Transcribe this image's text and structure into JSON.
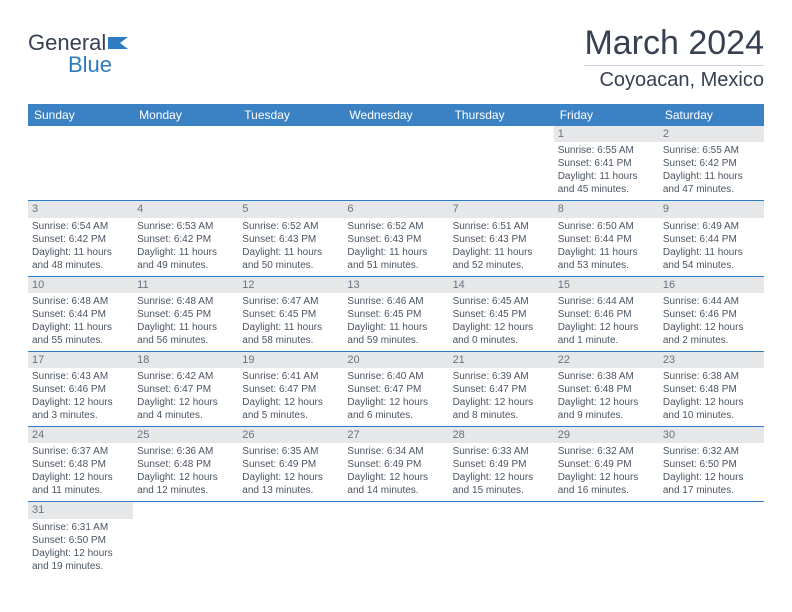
{
  "logo": {
    "general": "General",
    "blue": "Blue"
  },
  "title": "March 2024",
  "location": "Coyoacan, Mexico",
  "header_bg": "#3b82c4",
  "day_headers": [
    "Sunday",
    "Monday",
    "Tuesday",
    "Wednesday",
    "Thursday",
    "Friday",
    "Saturday"
  ],
  "weeks": [
    [
      null,
      null,
      null,
      null,
      null,
      {
        "n": "1",
        "sr": "Sunrise: 6:55 AM",
        "ss": "Sunset: 6:41 PM",
        "d1": "Daylight: 11 hours",
        "d2": "and 45 minutes."
      },
      {
        "n": "2",
        "sr": "Sunrise: 6:55 AM",
        "ss": "Sunset: 6:42 PM",
        "d1": "Daylight: 11 hours",
        "d2": "and 47 minutes."
      }
    ],
    [
      {
        "n": "3",
        "sr": "Sunrise: 6:54 AM",
        "ss": "Sunset: 6:42 PM",
        "d1": "Daylight: 11 hours",
        "d2": "and 48 minutes."
      },
      {
        "n": "4",
        "sr": "Sunrise: 6:53 AM",
        "ss": "Sunset: 6:42 PM",
        "d1": "Daylight: 11 hours",
        "d2": "and 49 minutes."
      },
      {
        "n": "5",
        "sr": "Sunrise: 6:52 AM",
        "ss": "Sunset: 6:43 PM",
        "d1": "Daylight: 11 hours",
        "d2": "and 50 minutes."
      },
      {
        "n": "6",
        "sr": "Sunrise: 6:52 AM",
        "ss": "Sunset: 6:43 PM",
        "d1": "Daylight: 11 hours",
        "d2": "and 51 minutes."
      },
      {
        "n": "7",
        "sr": "Sunrise: 6:51 AM",
        "ss": "Sunset: 6:43 PM",
        "d1": "Daylight: 11 hours",
        "d2": "and 52 minutes."
      },
      {
        "n": "8",
        "sr": "Sunrise: 6:50 AM",
        "ss": "Sunset: 6:44 PM",
        "d1": "Daylight: 11 hours",
        "d2": "and 53 minutes."
      },
      {
        "n": "9",
        "sr": "Sunrise: 6:49 AM",
        "ss": "Sunset: 6:44 PM",
        "d1": "Daylight: 11 hours",
        "d2": "and 54 minutes."
      }
    ],
    [
      {
        "n": "10",
        "sr": "Sunrise: 6:48 AM",
        "ss": "Sunset: 6:44 PM",
        "d1": "Daylight: 11 hours",
        "d2": "and 55 minutes."
      },
      {
        "n": "11",
        "sr": "Sunrise: 6:48 AM",
        "ss": "Sunset: 6:45 PM",
        "d1": "Daylight: 11 hours",
        "d2": "and 56 minutes."
      },
      {
        "n": "12",
        "sr": "Sunrise: 6:47 AM",
        "ss": "Sunset: 6:45 PM",
        "d1": "Daylight: 11 hours",
        "d2": "and 58 minutes."
      },
      {
        "n": "13",
        "sr": "Sunrise: 6:46 AM",
        "ss": "Sunset: 6:45 PM",
        "d1": "Daylight: 11 hours",
        "d2": "and 59 minutes."
      },
      {
        "n": "14",
        "sr": "Sunrise: 6:45 AM",
        "ss": "Sunset: 6:45 PM",
        "d1": "Daylight: 12 hours",
        "d2": "and 0 minutes."
      },
      {
        "n": "15",
        "sr": "Sunrise: 6:44 AM",
        "ss": "Sunset: 6:46 PM",
        "d1": "Daylight: 12 hours",
        "d2": "and 1 minute."
      },
      {
        "n": "16",
        "sr": "Sunrise: 6:44 AM",
        "ss": "Sunset: 6:46 PM",
        "d1": "Daylight: 12 hours",
        "d2": "and 2 minutes."
      }
    ],
    [
      {
        "n": "17",
        "sr": "Sunrise: 6:43 AM",
        "ss": "Sunset: 6:46 PM",
        "d1": "Daylight: 12 hours",
        "d2": "and 3 minutes."
      },
      {
        "n": "18",
        "sr": "Sunrise: 6:42 AM",
        "ss": "Sunset: 6:47 PM",
        "d1": "Daylight: 12 hours",
        "d2": "and 4 minutes."
      },
      {
        "n": "19",
        "sr": "Sunrise: 6:41 AM",
        "ss": "Sunset: 6:47 PM",
        "d1": "Daylight: 12 hours",
        "d2": "and 5 minutes."
      },
      {
        "n": "20",
        "sr": "Sunrise: 6:40 AM",
        "ss": "Sunset: 6:47 PM",
        "d1": "Daylight: 12 hours",
        "d2": "and 6 minutes."
      },
      {
        "n": "21",
        "sr": "Sunrise: 6:39 AM",
        "ss": "Sunset: 6:47 PM",
        "d1": "Daylight: 12 hours",
        "d2": "and 8 minutes."
      },
      {
        "n": "22",
        "sr": "Sunrise: 6:38 AM",
        "ss": "Sunset: 6:48 PM",
        "d1": "Daylight: 12 hours",
        "d2": "and 9 minutes."
      },
      {
        "n": "23",
        "sr": "Sunrise: 6:38 AM",
        "ss": "Sunset: 6:48 PM",
        "d1": "Daylight: 12 hours",
        "d2": "and 10 minutes."
      }
    ],
    [
      {
        "n": "24",
        "sr": "Sunrise: 6:37 AM",
        "ss": "Sunset: 6:48 PM",
        "d1": "Daylight: 12 hours",
        "d2": "and 11 minutes."
      },
      {
        "n": "25",
        "sr": "Sunrise: 6:36 AM",
        "ss": "Sunset: 6:48 PM",
        "d1": "Daylight: 12 hours",
        "d2": "and 12 minutes."
      },
      {
        "n": "26",
        "sr": "Sunrise: 6:35 AM",
        "ss": "Sunset: 6:49 PM",
        "d1": "Daylight: 12 hours",
        "d2": "and 13 minutes."
      },
      {
        "n": "27",
        "sr": "Sunrise: 6:34 AM",
        "ss": "Sunset: 6:49 PM",
        "d1": "Daylight: 12 hours",
        "d2": "and 14 minutes."
      },
      {
        "n": "28",
        "sr": "Sunrise: 6:33 AM",
        "ss": "Sunset: 6:49 PM",
        "d1": "Daylight: 12 hours",
        "d2": "and 15 minutes."
      },
      {
        "n": "29",
        "sr": "Sunrise: 6:32 AM",
        "ss": "Sunset: 6:49 PM",
        "d1": "Daylight: 12 hours",
        "d2": "and 16 minutes."
      },
      {
        "n": "30",
        "sr": "Sunrise: 6:32 AM",
        "ss": "Sunset: 6:50 PM",
        "d1": "Daylight: 12 hours",
        "d2": "and 17 minutes."
      }
    ],
    [
      {
        "n": "31",
        "sr": "Sunrise: 6:31 AM",
        "ss": "Sunset: 6:50 PM",
        "d1": "Daylight: 12 hours",
        "d2": "and 19 minutes."
      },
      null,
      null,
      null,
      null,
      null,
      null
    ]
  ]
}
